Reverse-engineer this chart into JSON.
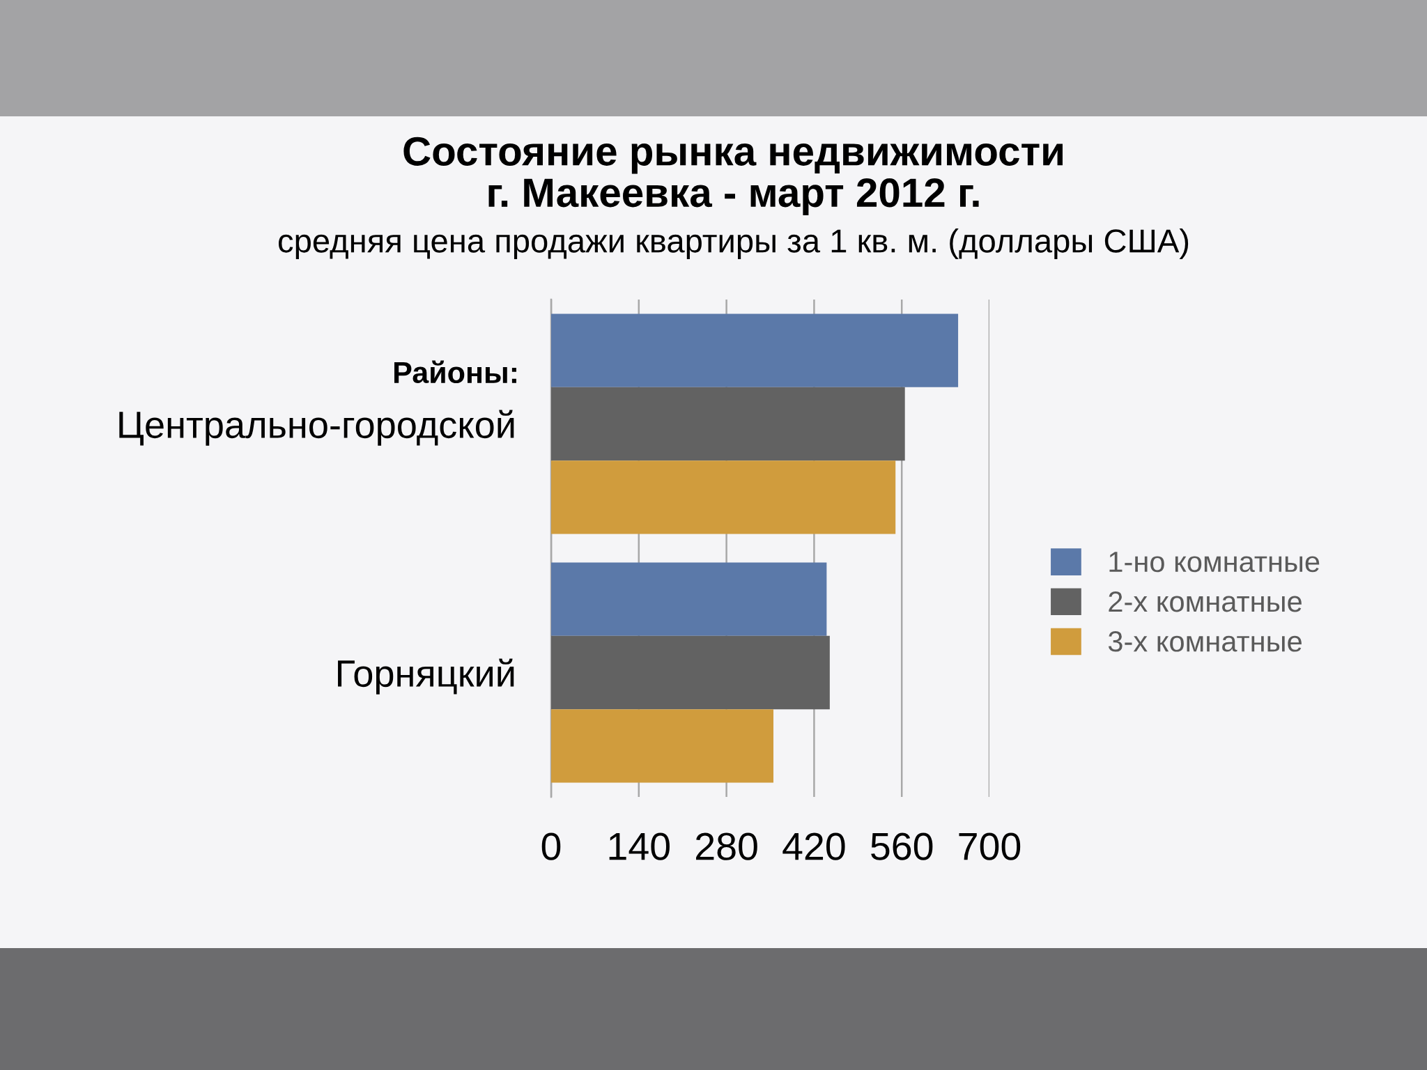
{
  "chart_data": {
    "type": "bar",
    "orientation": "horizontal",
    "title": "Состояние рынка недвижимости\nг. Макеевка - март 2012 г.",
    "subtitle": "средняя цена продажи квартиры за 1 кв. м. (доллары США)",
    "ylabel": "Районы:",
    "categories": [
      "Центрально-городской",
      "Горняцкий"
    ],
    "series": [
      {
        "name": "1-но комнатные",
        "color": "#5b79a9",
        "values": [
          650,
          440
        ]
      },
      {
        "name": "2-х комнатные",
        "color": "#626262",
        "values": [
          565,
          445
        ]
      },
      {
        "name": "3-х комнатные",
        "color": "#d09c3d",
        "values": [
          550,
          355
        ]
      }
    ],
    "xlim": [
      0,
      700
    ],
    "xticks": [
      0,
      140,
      280,
      420,
      560,
      700
    ],
    "grid": "x",
    "legend": "right"
  }
}
